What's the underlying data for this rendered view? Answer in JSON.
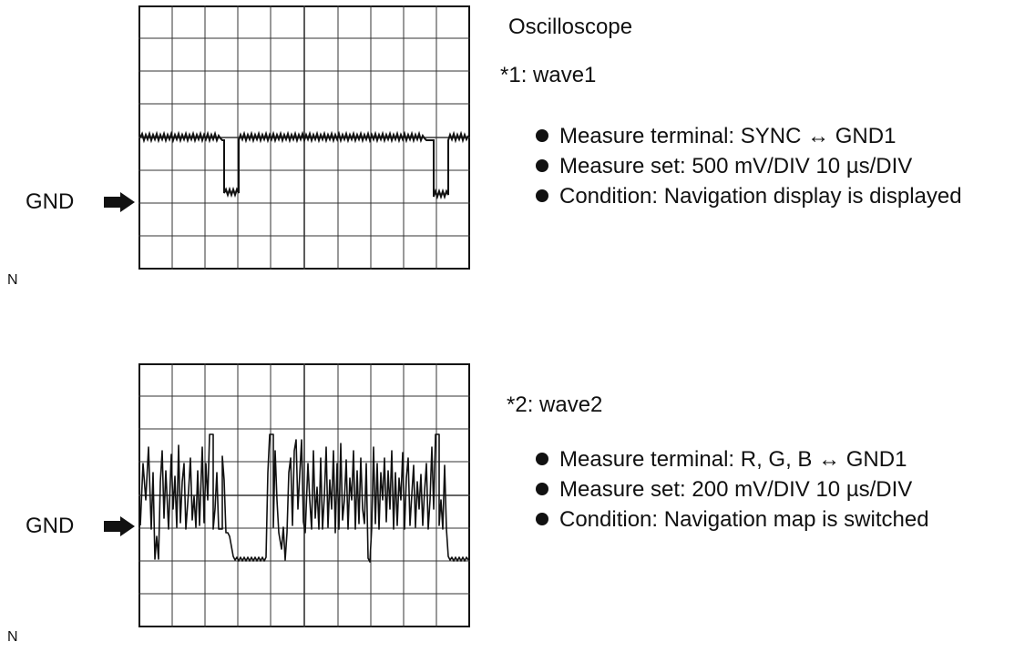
{
  "header": {
    "title": "Oscilloscope"
  },
  "waves": [
    {
      "label": "*1: wave1",
      "gnd_label": "GND",
      "corner_mark": "N",
      "specs": [
        "Measure terminal: SYNC ↔ GND1",
        "Measure set: 500 mV/DIV 10 µs/DIV",
        "Condition: Navigation display is displayed"
      ]
    },
    {
      "label": "*2: wave2",
      "gnd_label": "GND",
      "corner_mark": "N",
      "specs": [
        "Measure terminal: R, G, B ↔ GND1",
        "Measure set: 200 mV/DIV 10 µs/DIV",
        "Condition: Navigation map is switched"
      ]
    }
  ],
  "icons": {
    "ground_pointer": "right-arrow-icon"
  },
  "colors": {
    "ink": "#111111",
    "background": "#ffffff"
  }
}
